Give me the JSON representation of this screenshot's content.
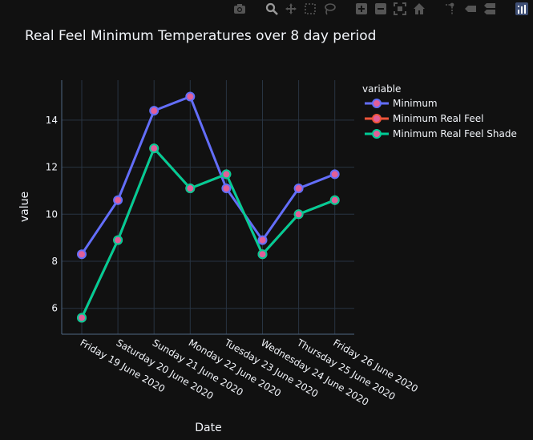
{
  "chart_data": {
    "type": "line",
    "title": "Real Feel Minimum Temperatures over 8 day period",
    "xlabel": "Date",
    "ylabel": "value",
    "legend_title": "variable",
    "legend_position": "top-right",
    "categories": [
      "Friday 19 June 2020",
      "Saturday 20 June 2020",
      "Sunday 21 June 2020",
      "Monday 22 June 2020",
      "Tuesday 23 June 2020",
      "Wednesday 24 June 2020",
      "Thursday 25 June 2020",
      "Friday 26 June 2020"
    ],
    "yticks": [
      6,
      8,
      10,
      12,
      14
    ],
    "ylim": [
      4.9,
      15.7
    ],
    "grid": true,
    "series": [
      {
        "name": "Minimum",
        "color": "#636efa",
        "values": [
          8.3,
          10.6,
          14.4,
          15.0,
          11.1,
          8.9,
          11.1,
          11.7
        ]
      },
      {
        "name": "Minimum Real Feel",
        "color": "#ef553b",
        "values": [
          5.6,
          8.9,
          12.8,
          11.1,
          11.7,
          8.3,
          10.0,
          10.6
        ]
      },
      {
        "name": "Minimum Real Feel Shade",
        "color": "#00cc96",
        "values": [
          5.6,
          8.9,
          12.8,
          11.1,
          11.7,
          8.3,
          10.0,
          10.6
        ]
      }
    ],
    "marker_color": "#e15f99"
  },
  "modebar": {
    "icons": [
      "camera-icon",
      "zoom-icon",
      "pan-icon",
      "box-select-icon",
      "lasso-select-icon",
      "zoom-in-icon",
      "zoom-out-icon",
      "autoscale-icon",
      "reset-axes-icon",
      "spike-lines-icon",
      "hover-closest-icon",
      "hover-compare-icon",
      "plotly-logo-icon"
    ]
  }
}
